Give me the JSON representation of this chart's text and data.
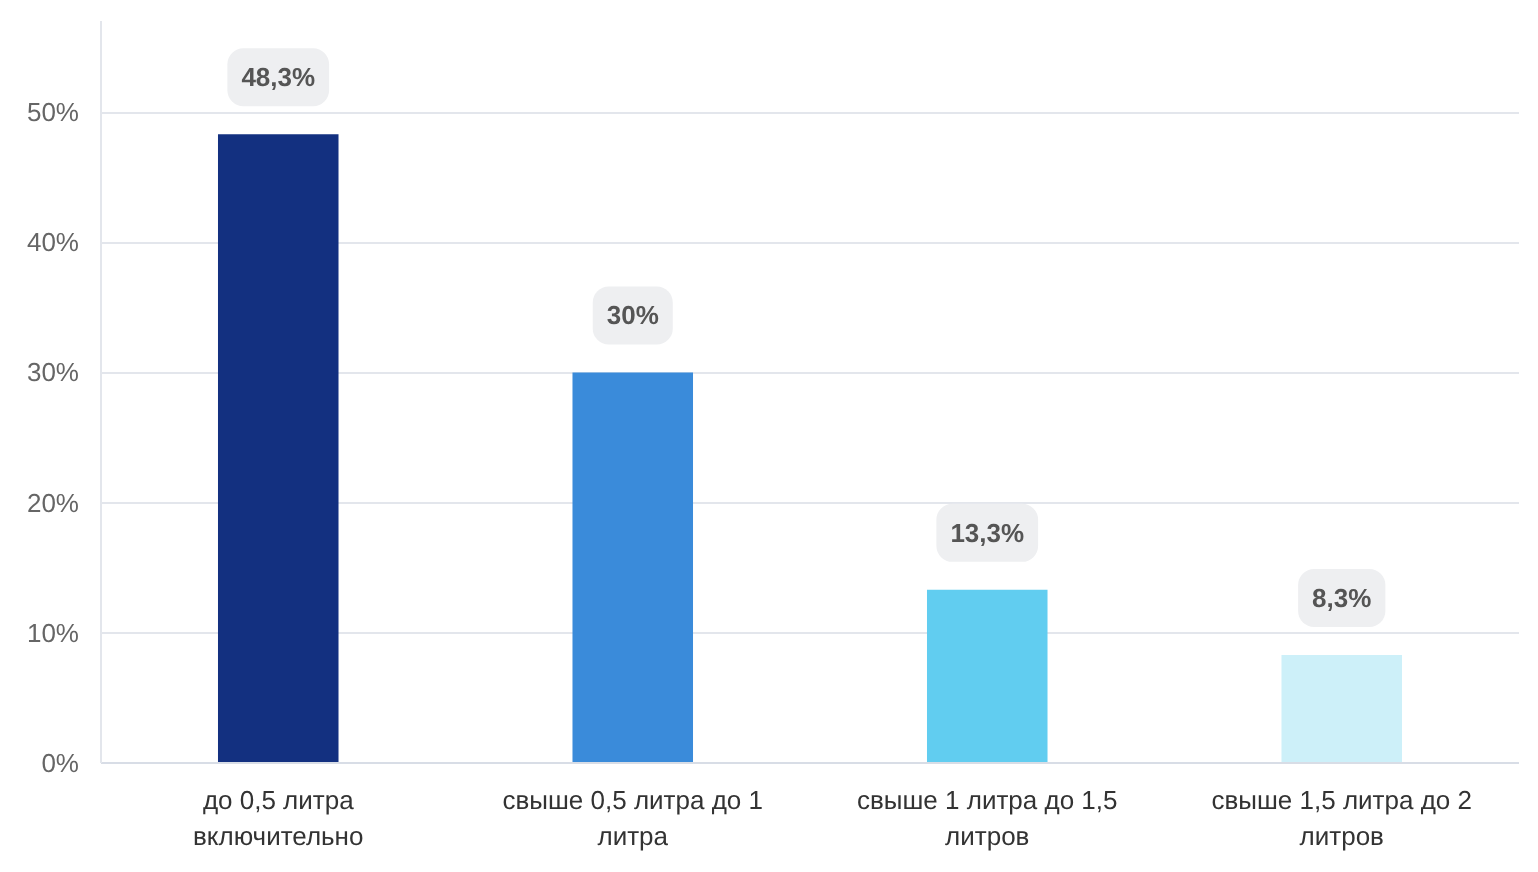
{
  "chart_data": {
    "type": "bar",
    "categories": [
      "до 0,5 литра включительно",
      "свыше 0,5 литра до 1 литра",
      "свыше 1 литра до 1,5 литров",
      "свыше 1,5 литра до 2 литров"
    ],
    "values": [
      48.3,
      30,
      13.3,
      8.3
    ],
    "colors": [
      "#133080",
      "#3a8bda",
      "#61cdf0",
      "#cdf0f9"
    ],
    "value_labels": [
      "48,3%",
      "30%",
      "13,3%",
      "8,3%"
    ],
    "ylim": [
      0,
      57
    ],
    "yticks": [
      {
        "value": 0,
        "label": "0%"
      },
      {
        "value": 10,
        "label": "10%"
      },
      {
        "value": 20,
        "label": "20%"
      },
      {
        "value": 30,
        "label": "30%"
      },
      {
        "value": 40,
        "label": "40%"
      },
      {
        "value": 50,
        "label": "50%"
      }
    ],
    "grid": "y"
  }
}
